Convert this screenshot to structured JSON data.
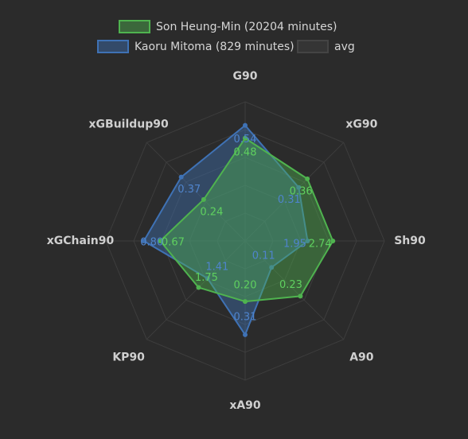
{
  "chart_data": {
    "type": "radar",
    "axes": [
      "G90",
      "xG90",
      "Sh90",
      "A90",
      "xA90",
      "KP90",
      "xGChain90",
      "xGBuildup90"
    ],
    "series": [
      {
        "name": "Son Heung-Min (20204 minutes)",
        "values": [
          0.48,
          0.36,
          2.74,
          0.23,
          0.2,
          1.75,
          0.67,
          0.24
        ],
        "labels": [
          "0.48",
          "0.36",
          "2.74",
          "0.23",
          "0.20",
          "1.75",
          "0.67",
          "0.24"
        ],
        "color": "#4fb34f"
      },
      {
        "name": "Kaoru Mitoma (829 minutes)",
        "values": [
          0.54,
          0.31,
          1.95,
          0.11,
          0.31,
          1.41,
          0.8,
          0.37
        ],
        "labels": [
          "0.54",
          "0.31",
          "1.95",
          "0.11",
          "0.31",
          "1.41",
          "0.80",
          "0.37"
        ],
        "color": "#3f72b5"
      },
      {
        "name": "avg",
        "values": [],
        "color": "#3a3a3a"
      }
    ],
    "grid_rings": 5,
    "legend_position": "top"
  }
}
